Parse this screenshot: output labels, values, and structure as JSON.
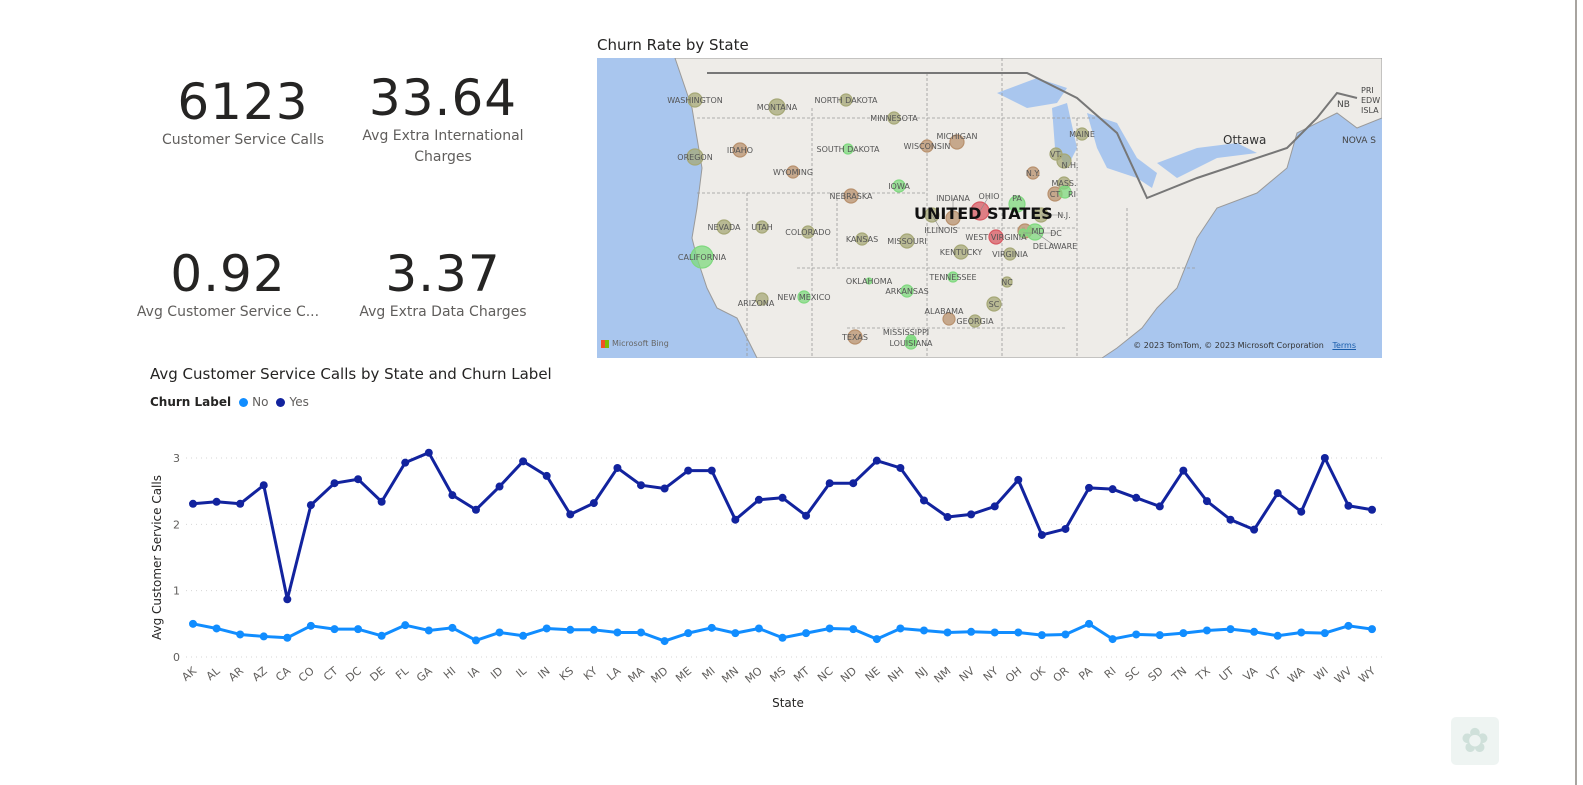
{
  "kpis": [
    {
      "value": "6123",
      "label": "Customer Service Calls"
    },
    {
      "value": "33.64",
      "label": "Avg Extra International Charges"
    },
    {
      "value": "0.92",
      "label": "Avg Customer Service C..."
    },
    {
      "value": "3.37",
      "label": "Avg Extra Data Charges"
    }
  ],
  "map": {
    "title": "Churn Rate by State",
    "country_label": "UNITED STATES",
    "city_label": "Ottawa",
    "attribution": "© 2023 TomTom, © 2023 Microsoft Corporation",
    "terms": "Terms",
    "provider": "Microsoft Bing",
    "canada_labels": [
      "NB",
      "PRI EDW ISLA",
      "NOVA S"
    ],
    "colors": {
      "low": "#7fd97f",
      "mid": "#a6a877",
      "high": "#b8916e",
      "very_high": "#d85a63"
    },
    "states": [
      {
        "name": "WASHINGTON",
        "level": "mid"
      },
      {
        "name": "MONTANA",
        "level": "mid"
      },
      {
        "name": "NORTH DAKOTA",
        "level": "mid"
      },
      {
        "name": "MINNESOTA",
        "level": "mid"
      },
      {
        "name": "OREGON",
        "level": "mid"
      },
      {
        "name": "IDAHO",
        "level": "high"
      },
      {
        "name": "WYOMING",
        "level": "high"
      },
      {
        "name": "SOUTH DAKOTA",
        "level": "low"
      },
      {
        "name": "WISCONSIN",
        "level": "high"
      },
      {
        "name": "MICHIGAN",
        "level": "high"
      },
      {
        "name": "IOWA",
        "level": "low"
      },
      {
        "name": "NEBRASKA",
        "level": "high"
      },
      {
        "name": "NEVADA",
        "level": "mid"
      },
      {
        "name": "UTAH",
        "level": "mid"
      },
      {
        "name": "COLORADO",
        "level": "mid"
      },
      {
        "name": "KANSAS",
        "level": "mid"
      },
      {
        "name": "MISSOURI",
        "level": "mid"
      },
      {
        "name": "ILLINOIS",
        "level": "mid"
      },
      {
        "name": "INDIANA",
        "level": "high"
      },
      {
        "name": "OHIO",
        "level": "very_high"
      },
      {
        "name": "WEST VIRGINIA",
        "level": "very_high"
      },
      {
        "name": "VIRGINIA",
        "level": "mid"
      },
      {
        "name": "KENTUCKY",
        "level": "mid"
      },
      {
        "name": "TENNESSEE",
        "level": "low"
      },
      {
        "name": "NC",
        "level": "mid"
      },
      {
        "name": "SC",
        "level": "mid"
      },
      {
        "name": "GEORGIA",
        "level": "mid"
      },
      {
        "name": "ALABAMA",
        "level": "high"
      },
      {
        "name": "LOUISIANA",
        "level": "low"
      },
      {
        "name": "TEXAS",
        "level": "high"
      },
      {
        "name": "OKLAHOMA",
        "level": "low"
      },
      {
        "name": "ARKANSAS",
        "level": "low"
      },
      {
        "name": "NEW MEXICO",
        "level": "low"
      },
      {
        "name": "ARIZONA",
        "level": "mid"
      },
      {
        "name": "CALIFORNIA",
        "level": "low"
      },
      {
        "name": "PA",
        "level": "low"
      },
      {
        "name": "N.J.",
        "level": "mid"
      },
      {
        "name": "MD",
        "level": "high"
      },
      {
        "name": "DELAWARE",
        "level": "low"
      },
      {
        "name": "DC",
        "level": "low"
      },
      {
        "name": "N.Y.",
        "level": "high"
      },
      {
        "name": "VT.",
        "level": "mid"
      },
      {
        "name": "N.H.",
        "level": "mid"
      },
      {
        "name": "MASS.",
        "level": "mid"
      },
      {
        "name": "CT",
        "level": "high"
      },
      {
        "name": "RI",
        "level": "low"
      },
      {
        "name": "MAINE",
        "level": "mid"
      },
      {
        "name": "MISSISSIPPI",
        "level": "low"
      }
    ]
  },
  "chart_data": {
    "type": "line",
    "title": "Avg Customer Service Calls by State and Churn Label",
    "legend_title": "Churn Label",
    "legend_position": "top-left",
    "xlabel": "State",
    "ylabel": "Avg Customer Service Calls",
    "ylim": [
      0,
      3
    ],
    "yticks": [
      "0",
      "1",
      "2",
      "3"
    ],
    "grid": true,
    "categories": [
      "AK",
      "AL",
      "AR",
      "AZ",
      "CA",
      "CO",
      "CT",
      "DC",
      "DE",
      "FL",
      "GA",
      "HI",
      "IA",
      "ID",
      "IL",
      "IN",
      "KS",
      "KY",
      "LA",
      "MA",
      "MD",
      "ME",
      "MI",
      "MN",
      "MO",
      "MS",
      "MT",
      "NC",
      "ND",
      "NE",
      "NH",
      "NJ",
      "NM",
      "NV",
      "NY",
      "OH",
      "OK",
      "OR",
      "PA",
      "RI",
      "SC",
      "SD",
      "TN",
      "TX",
      "UT",
      "VA",
      "VT",
      "WA",
      "WI",
      "WV",
      "WY"
    ],
    "series": [
      {
        "name": "No",
        "color": "#118dff",
        "values": [
          0.5,
          0.43,
          0.34,
          0.31,
          0.29,
          0.47,
          0.42,
          0.42,
          0.32,
          0.48,
          0.4,
          0.44,
          0.25,
          0.37,
          0.32,
          0.43,
          0.41,
          0.41,
          0.37,
          0.37,
          0.24,
          0.36,
          0.44,
          0.36,
          0.43,
          0.29,
          0.36,
          0.43,
          0.42,
          0.27,
          0.43,
          0.4,
          0.37,
          0.38,
          0.37,
          0.37,
          0.33,
          0.34,
          0.5,
          0.27,
          0.34,
          0.33,
          0.36,
          0.4,
          0.42,
          0.38,
          0.32,
          0.37,
          0.36,
          0.47,
          0.42
        ]
      },
      {
        "name": "Yes",
        "color": "#12239e",
        "values": [
          2.31,
          2.34,
          2.31,
          2.59,
          0.87,
          2.29,
          2.62,
          2.68,
          2.34,
          2.93,
          3.08,
          2.44,
          2.22,
          2.57,
          2.95,
          2.73,
          2.15,
          2.32,
          2.85,
          2.59,
          2.54,
          2.81,
          2.81,
          2.07,
          2.37,
          2.4,
          2.13,
          2.62,
          2.62,
          2.96,
          2.85,
          2.36,
          2.11,
          2.15,
          2.27,
          2.67,
          1.84,
          1.93,
          2.55,
          2.53,
          2.4,
          2.27,
          2.81,
          2.35,
          2.07,
          1.92,
          2.47,
          2.19,
          3.0,
          2.28,
          2.22
        ]
      }
    ]
  }
}
